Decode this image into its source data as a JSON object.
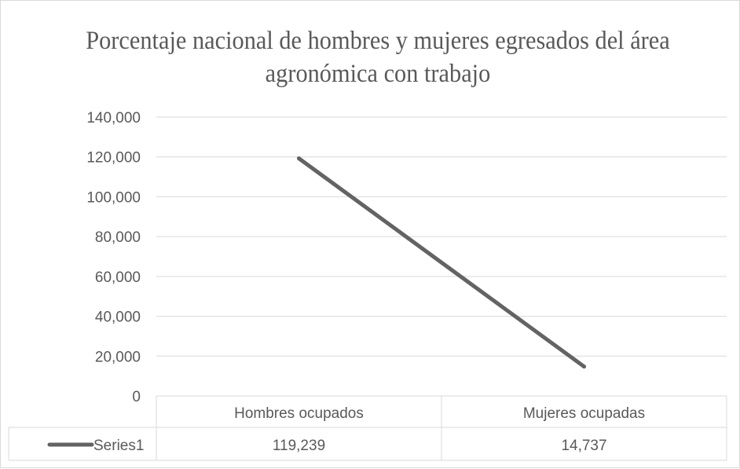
{
  "chart_data": {
    "type": "line",
    "title": "Porcentaje nacional de hombres y mujeres egresados del área agronómica con trabajo",
    "categories": [
      "Hombres ocupados",
      "Mujeres ocupadas"
    ],
    "series": [
      {
        "name": "Series1",
        "values": [
          119239,
          14737
        ],
        "value_labels": [
          "119,239",
          "14,737"
        ],
        "color": "#636363"
      }
    ],
    "yticks": [
      0,
      20000,
      40000,
      60000,
      80000,
      100000,
      120000,
      140000
    ],
    "ytick_labels": [
      "0",
      "20,000",
      "40,000",
      "60,000",
      "80,000",
      "100,000",
      "120,000",
      "140,000"
    ],
    "ylim": [
      0,
      140000
    ],
    "grid": true,
    "legend": "data-table"
  },
  "colors": {
    "gridline": "#d9d9d9",
    "text": "#595959",
    "line": "#636363"
  }
}
